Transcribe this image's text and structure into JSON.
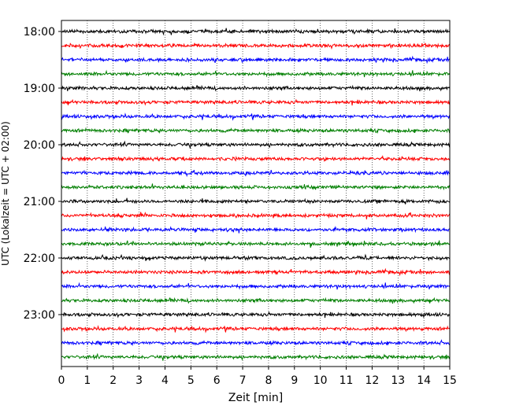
{
  "chart_data": {
    "type": "line",
    "title": "",
    "xlabel": "Zeit  [min]",
    "ylabel": "UTC (Lokalzeit = UTC + 02:00)",
    "xlim": [
      0,
      15
    ],
    "x_ticks": [
      0,
      1,
      2,
      3,
      4,
      5,
      6,
      7,
      8,
      9,
      10,
      11,
      12,
      13,
      14,
      15
    ],
    "y_tick_labels": [
      "18:00",
      "19:00",
      "20:00",
      "21:00",
      "22:00",
      "23:00"
    ],
    "grid": "vertical dotted lines at each minute",
    "trace_interval_minutes": 15,
    "colors": [
      "#000000",
      "#ff0000",
      "#0000ff",
      "#007f00"
    ],
    "traces": [
      {
        "start": "18:00",
        "color": "#000000"
      },
      {
        "start": "18:15",
        "color": "#ff0000"
      },
      {
        "start": "18:30",
        "color": "#0000ff"
      },
      {
        "start": "18:45",
        "color": "#007f00"
      },
      {
        "start": "19:00",
        "color": "#000000"
      },
      {
        "start": "19:15",
        "color": "#ff0000"
      },
      {
        "start": "19:30",
        "color": "#0000ff"
      },
      {
        "start": "19:45",
        "color": "#007f00"
      },
      {
        "start": "20:00",
        "color": "#000000"
      },
      {
        "start": "20:15",
        "color": "#ff0000"
      },
      {
        "start": "20:30",
        "color": "#0000ff"
      },
      {
        "start": "20:45",
        "color": "#007f00"
      },
      {
        "start": "21:00",
        "color": "#000000"
      },
      {
        "start": "21:15",
        "color": "#ff0000"
      },
      {
        "start": "21:30",
        "color": "#0000ff"
      },
      {
        "start": "21:45",
        "color": "#007f00"
      },
      {
        "start": "22:00",
        "color": "#000000"
      },
      {
        "start": "22:15",
        "color": "#ff0000"
      },
      {
        "start": "22:30",
        "color": "#0000ff"
      },
      {
        "start": "22:45",
        "color": "#007f00"
      },
      {
        "start": "23:00",
        "color": "#000000"
      },
      {
        "start": "23:15",
        "color": "#ff0000"
      },
      {
        "start": "23:30",
        "color": "#0000ff"
      },
      {
        "start": "23:45",
        "color": "#007f00"
      }
    ]
  }
}
